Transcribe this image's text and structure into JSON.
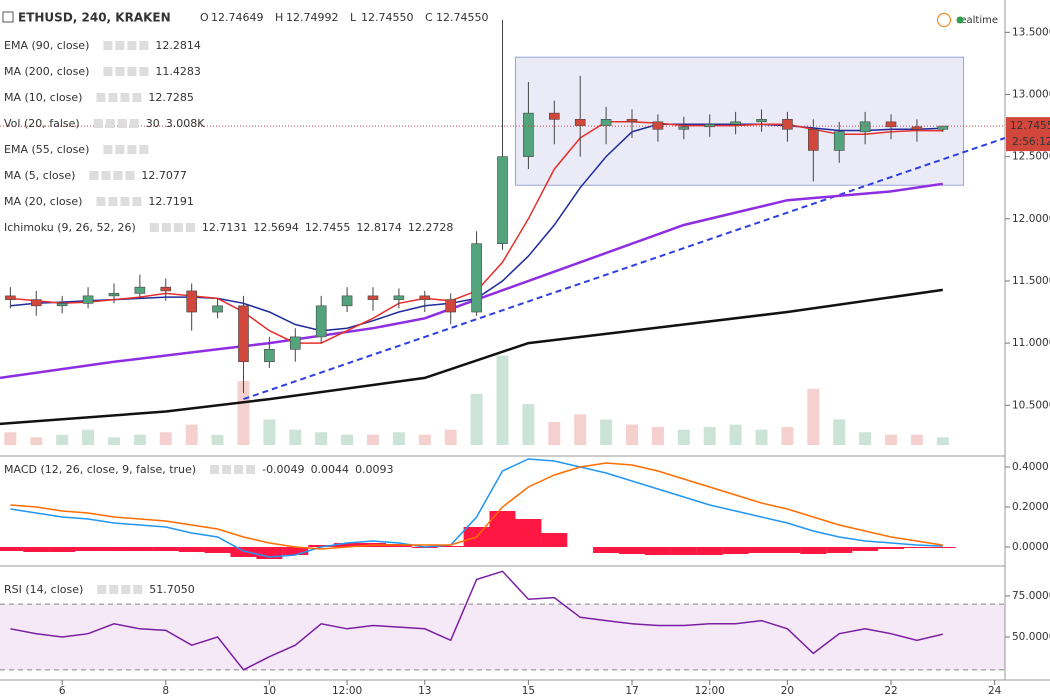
{
  "header": {
    "symbol": "ETHUSD, 240, KRAKEN",
    "ohlc": [
      {
        "key": "O",
        "value": "12.74649"
      },
      {
        "key": "H",
        "value": "12.74992"
      },
      {
        "key": "L",
        "value": "12.74550"
      },
      {
        "key": "C",
        "value": "12.74550"
      }
    ],
    "status": "realtime",
    "price_label": "12.74550",
    "countdown": "2:56:12"
  },
  "chart_data": [
    {
      "type": "candlestick",
      "t": [
        5,
        5.5,
        6,
        6.5,
        7,
        7.5,
        8,
        8.5,
        9,
        9.5,
        10,
        10.5,
        11,
        11.5,
        12,
        12.5,
        13,
        13.5,
        14,
        14.5,
        15,
        15.5,
        16,
        16.5,
        17,
        17.5,
        18,
        18.5,
        19,
        19.5,
        20,
        20.5,
        21,
        21.5,
        22,
        22.5,
        23
      ],
      "open": [
        11.38,
        11.35,
        11.3,
        11.32,
        11.38,
        11.4,
        11.45,
        11.42,
        11.25,
        11.3,
        10.85,
        10.95,
        11.05,
        11.3,
        11.38,
        11.35,
        11.38,
        11.35,
        11.25,
        11.8,
        12.5,
        12.85,
        12.8,
        12.75,
        12.8,
        12.78,
        12.72,
        12.74,
        12.76,
        12.78,
        12.8,
        12.72,
        12.55,
        12.7,
        12.78,
        12.74,
        12.72
      ],
      "high": [
        11.45,
        11.42,
        11.38,
        11.45,
        11.48,
        11.55,
        11.52,
        11.48,
        11.36,
        11.38,
        11.05,
        11.12,
        11.38,
        11.45,
        11.45,
        11.44,
        11.42,
        11.4,
        11.9,
        13.6,
        13.1,
        12.95,
        13.15,
        12.9,
        12.88,
        12.84,
        12.82,
        12.84,
        12.86,
        12.88,
        12.86,
        12.8,
        12.78,
        12.86,
        12.84,
        12.8,
        12.74992
      ],
      "low": [
        11.28,
        11.22,
        11.24,
        11.28,
        11.32,
        11.36,
        11.34,
        11.1,
        11.2,
        10.6,
        10.8,
        10.85,
        11.0,
        11.25,
        11.26,
        11.28,
        11.25,
        11.15,
        11.22,
        11.75,
        12.4,
        12.6,
        12.5,
        12.6,
        12.65,
        12.62,
        12.64,
        12.66,
        12.68,
        12.7,
        12.62,
        12.3,
        12.45,
        12.6,
        12.64,
        12.62,
        12.7
      ],
      "close": [
        11.35,
        11.3,
        11.32,
        11.38,
        11.4,
        11.45,
        11.42,
        11.25,
        11.3,
        10.85,
        10.95,
        11.05,
        11.3,
        11.38,
        11.35,
        11.38,
        11.35,
        11.25,
        11.8,
        12.5,
        12.85,
        12.8,
        12.75,
        12.8,
        12.78,
        12.72,
        12.74,
        12.76,
        12.78,
        12.8,
        12.72,
        12.55,
        12.7,
        12.78,
        12.74,
        12.72,
        12.7455
      ],
      "volume": [
        0.5,
        0.3,
        0.4,
        0.6,
        0.3,
        0.4,
        0.5,
        0.8,
        0.4,
        2.5,
        1.0,
        0.6,
        0.5,
        0.4,
        0.4,
        0.5,
        0.4,
        0.6,
        2.0,
        3.5,
        1.6,
        0.9,
        1.2,
        1.0,
        0.8,
        0.7,
        0.6,
        0.7,
        0.8,
        0.6,
        0.7,
        2.2,
        1.0,
        0.5,
        0.4,
        0.4,
        0.3
      ],
      "vlim": [
        0,
        4.5
      ],
      "up_color": "#53a47c",
      "down_color": "#d2473b",
      "series": [
        {
          "name": "EMA (90, close)",
          "color": "#8e2de2",
          "label_value": "12.2814",
          "x": [
            4.8,
            7,
            9,
            10,
            12,
            13,
            14,
            16,
            18,
            20,
            22,
            23
          ],
          "values": [
            10.72,
            10.85,
            10.95,
            11.0,
            11.12,
            11.2,
            11.35,
            11.65,
            11.95,
            12.15,
            12.22,
            12.2814
          ]
        },
        {
          "name": "MA (200, close)",
          "color": "#111111",
          "label_value": "11.4283",
          "x": [
            4.8,
            8,
            10,
            13,
            15,
            17,
            20,
            23
          ],
          "values": [
            10.35,
            10.45,
            10.55,
            10.72,
            11.0,
            11.1,
            11.25,
            11.4283
          ]
        },
        {
          "name": "MA (10, close)",
          "color": "#1f2a9c",
          "label_value": "12.7285",
          "values": [
            11.3,
            11.32,
            11.33,
            11.34,
            11.35,
            11.36,
            11.37,
            11.37,
            11.36,
            11.32,
            11.25,
            11.15,
            11.1,
            11.12,
            11.18,
            11.25,
            11.3,
            11.32,
            11.36,
            11.5,
            11.7,
            11.95,
            12.25,
            12.5,
            12.7,
            12.76,
            12.76,
            12.76,
            12.76,
            12.76,
            12.75,
            12.73,
            12.71,
            12.71,
            12.72,
            12.72,
            12.7285
          ]
        },
        {
          "name": "MA (5, close)",
          "color": "#e5302c",
          "label_value": "12.7077",
          "values": [
            11.36,
            11.34,
            11.32,
            11.33,
            11.35,
            11.37,
            11.4,
            11.38,
            11.36,
            11.25,
            11.1,
            11.0,
            11.0,
            11.1,
            11.2,
            11.32,
            11.36,
            11.34,
            11.42,
            11.65,
            12.0,
            12.4,
            12.65,
            12.78,
            12.78,
            12.77,
            12.75,
            12.75,
            12.75,
            12.76,
            12.76,
            12.72,
            12.68,
            12.68,
            12.7,
            12.71,
            12.7077
          ]
        }
      ],
      "indicators": [
        {
          "name": "Vol (20, false)",
          "values": [
            "30",
            "3.008K"
          ]
        },
        {
          "name": "EMA (55, close)"
        },
        {
          "name": "MA (20, close)",
          "values": [
            "12.7191"
          ]
        },
        {
          "name": "Ichimoku (9, 26, 52, 26)",
          "values": [
            "12.7131",
            "12.5694",
            "12.7455",
            "12.8174",
            "12.2728"
          ]
        }
      ],
      "trendline": {
        "x": [
          9.5,
          24.2
        ],
        "values": [
          10.55,
          12.65
        ],
        "color": "#2f3fe0"
      },
      "box": {
        "x": [
          14.75,
          23.4
        ],
        "values": [
          12.27,
          13.3
        ]
      },
      "last_price": 12.7455,
      "xlim": [
        4.8,
        24.2
      ],
      "xticks": [
        6,
        8,
        10,
        {
          "value": 11.5,
          "label": "12:00"
        },
        13,
        15,
        17,
        {
          "value": 18.5,
          "label": "12:00"
        },
        20,
        22,
        24
      ],
      "ylim": [
        10.1,
        13.76
      ],
      "yticks": [
        {
          "value": 13.5,
          "label": "13.50000"
        },
        {
          "value": 13,
          "label": "13.00000"
        },
        {
          "value": 12.5,
          "label": "12.50000"
        },
        {
          "value": 12,
          "label": "12.00000"
        },
        {
          "value": 11.5,
          "label": "11.50000"
        },
        {
          "value": 11,
          "label": "11.00000"
        },
        {
          "value": 10.5,
          "label": "10.50000"
        }
      ]
    },
    {
      "type": "macd",
      "name": "MACD (12, 26, close, 9, false, true)",
      "label_values": [
        "-0.0049",
        "0.0044",
        "0.0093"
      ],
      "histogram": [
        -0.02,
        -0.025,
        -0.025,
        -0.02,
        -0.02,
        -0.02,
        -0.02,
        -0.025,
        -0.03,
        -0.05,
        -0.06,
        -0.04,
        0.01,
        0.02,
        0.02,
        0.015,
        -0.005,
        0.005,
        0.1,
        0.18,
        0.14,
        0.07,
        0.0,
        -0.03,
        -0.035,
        -0.04,
        -0.04,
        -0.04,
        -0.035,
        -0.03,
        -0.03,
        -0.035,
        -0.03,
        -0.02,
        -0.01,
        -0.005,
        -0.0049
      ],
      "macd": [
        0.19,
        0.17,
        0.15,
        0.14,
        0.12,
        0.11,
        0.1,
        0.07,
        0.05,
        -0.02,
        -0.05,
        -0.04,
        0.0,
        0.02,
        0.03,
        0.02,
        0.0,
        0.01,
        0.15,
        0.38,
        0.44,
        0.43,
        0.4,
        0.37,
        0.33,
        0.29,
        0.25,
        0.21,
        0.18,
        0.15,
        0.12,
        0.08,
        0.05,
        0.03,
        0.02,
        0.01,
        0.0044
      ],
      "signal": [
        0.21,
        0.2,
        0.18,
        0.17,
        0.15,
        0.14,
        0.13,
        0.11,
        0.09,
        0.05,
        0.02,
        0.0,
        -0.01,
        0.0,
        0.01,
        0.01,
        0.01,
        0.01,
        0.05,
        0.2,
        0.3,
        0.36,
        0.4,
        0.42,
        0.41,
        0.38,
        0.34,
        0.3,
        0.26,
        0.22,
        0.19,
        0.15,
        0.11,
        0.08,
        0.05,
        0.03,
        0.0093
      ],
      "colors": {
        "histogram": "#ff1744",
        "macd": "#2196f3",
        "signal": "#ff6d00"
      },
      "ylim": [
        -0.09,
        0.45
      ],
      "yticks": [
        {
          "value": 0.4,
          "label": "0.4000"
        },
        {
          "value": 0.2,
          "label": "0.2000"
        },
        {
          "value": 0,
          "label": "0.0000"
        }
      ]
    },
    {
      "type": "line",
      "name": "RSI (14, close)",
      "label_value": "51.7050",
      "color": "#7b1fa2",
      "values": [
        55,
        52,
        50,
        52,
        58,
        55,
        54,
        45,
        50,
        30,
        38,
        45,
        58,
        55,
        57,
        56,
        55,
        48,
        85,
        90,
        73,
        74,
        62,
        60,
        58,
        57,
        57,
        58,
        58,
        60,
        55,
        40,
        52,
        55,
        52,
        48,
        51.705
      ],
      "bands": [
        70,
        30
      ],
      "ylim": [
        23.8,
        92
      ],
      "yticks": [
        {
          "value": 75,
          "label": "75.0000"
        },
        {
          "value": 50,
          "label": "50.0000"
        }
      ]
    }
  ]
}
